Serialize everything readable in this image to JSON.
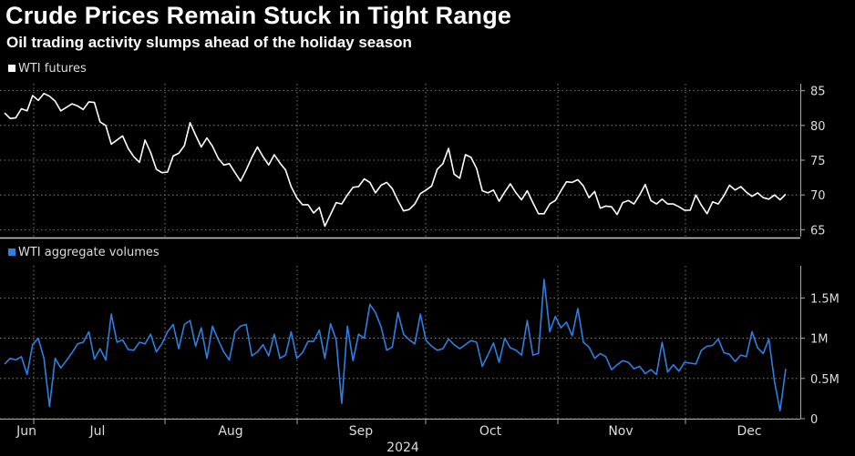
{
  "title": "Crude Prices Remain Stuck in Tight Range",
  "subtitle": "Oil trading activity slumps ahead of the holiday season",
  "colors": {
    "price": "#ffffff",
    "volume": "#2f7fe0",
    "grid": "#9a9a9a",
    "background": "#000000"
  },
  "chart_data": [
    {
      "type": "line",
      "legend": "WTI futures",
      "ylim": [
        64,
        86
      ],
      "yticks": [
        65,
        70,
        75,
        80,
        85
      ],
      "series": [
        {
          "name": "WTI futures",
          "x": [
            0,
            1,
            2,
            3,
            4,
            5,
            6,
            7,
            8,
            9,
            10,
            11,
            12,
            13,
            14,
            15,
            16,
            17,
            18,
            19,
            20,
            21,
            22,
            23,
            24,
            25,
            26,
            27,
            28,
            29,
            30,
            31,
            32,
            33,
            34,
            35,
            36,
            37,
            38,
            39,
            40,
            41,
            42,
            43,
            44,
            45,
            46,
            47,
            48,
            49,
            50,
            51,
            52,
            53,
            54,
            55,
            56,
            57,
            58,
            59,
            60,
            61,
            62,
            63,
            64,
            65,
            66,
            67,
            68,
            69,
            70,
            71,
            72,
            73,
            74,
            75,
            76,
            77,
            78,
            79,
            80,
            81,
            82,
            83,
            84,
            85,
            86,
            87,
            88,
            89,
            90,
            91,
            92,
            93,
            94,
            95,
            96,
            97,
            98,
            99,
            100,
            101,
            102,
            103,
            104,
            105,
            106,
            107,
            108,
            109,
            110,
            111,
            112,
            113,
            114,
            115,
            116,
            117,
            118,
            119,
            120,
            121,
            122,
            123,
            124,
            125,
            126,
            127,
            128,
            129,
            130,
            131,
            132,
            133,
            134,
            135,
            136,
            137,
            138,
            139
          ],
          "values": [
            81.8,
            81.0,
            81.1,
            82.4,
            82.1,
            84.3,
            83.6,
            84.6,
            84.2,
            83.5,
            82.1,
            82.6,
            83.1,
            82.8,
            82.3,
            83.4,
            83.3,
            80.5,
            80.0,
            77.3,
            77.9,
            78.5,
            76.7,
            75.5,
            74.7,
            77.9,
            76.1,
            73.7,
            73.2,
            73.3,
            75.6,
            76.0,
            77.1,
            80.4,
            78.6,
            76.9,
            78.2,
            77.0,
            75.3,
            74.3,
            74.5,
            73.2,
            72.0,
            73.6,
            75.4,
            76.9,
            75.5,
            74.3,
            75.8,
            74.6,
            73.6,
            71.2,
            69.6,
            68.6,
            68.6,
            67.4,
            68.2,
            65.5,
            67.2,
            68.9,
            68.7,
            70.0,
            71.1,
            71.2,
            72.3,
            71.8,
            70.3,
            71.4,
            71.8,
            70.9,
            69.2,
            67.7,
            67.9,
            68.7,
            70.2,
            70.7,
            71.3,
            73.7,
            74.5,
            76.7,
            73.0,
            72.4,
            75.8,
            75.4,
            73.8,
            70.6,
            70.3,
            70.7,
            69.1,
            70.4,
            71.6,
            70.3,
            69.3,
            70.6,
            68.9,
            67.3,
            67.3,
            68.7,
            69.2,
            70.6,
            71.9,
            71.8,
            72.2,
            71.3,
            69.6,
            70.5,
            68.1,
            68.4,
            68.3,
            67.2,
            68.9,
            69.2,
            68.7,
            70.0,
            71.5,
            69.2,
            68.7,
            69.4,
            68.7,
            68.7,
            68.3,
            67.8,
            67.8,
            70.0,
            68.5,
            67.3,
            69.0,
            68.7,
            69.9,
            71.4,
            70.7,
            71.2,
            70.4,
            69.8,
            70.3,
            69.6,
            69.4,
            70.0,
            69.3,
            70.1
          ]
        }
      ]
    },
    {
      "type": "line",
      "legend": "WTI aggregate volumes",
      "ylim": [
        0,
        1.9
      ],
      "yticks": [
        0,
        0.5,
        1,
        1.5
      ],
      "yticklabels": [
        "0",
        "0.5M",
        "1M",
        "1.5M"
      ],
      "series": [
        {
          "name": "WTI aggregate volumes (M)",
          "x": [
            0,
            1,
            2,
            3,
            4,
            5,
            6,
            7,
            8,
            9,
            10,
            11,
            12,
            13,
            14,
            15,
            16,
            17,
            18,
            19,
            20,
            21,
            22,
            23,
            24,
            25,
            26,
            27,
            28,
            29,
            30,
            31,
            32,
            33,
            34,
            35,
            36,
            37,
            38,
            39,
            40,
            41,
            42,
            43,
            44,
            45,
            46,
            47,
            48,
            49,
            50,
            51,
            52,
            53,
            54,
            55,
            56,
            57,
            58,
            59,
            60,
            61,
            62,
            63,
            64,
            65,
            66,
            67,
            68,
            69,
            70,
            71,
            72,
            73,
            74,
            75,
            76,
            77,
            78,
            79,
            80,
            81,
            82,
            83,
            84,
            85,
            86,
            87,
            88,
            89,
            90,
            91,
            92,
            93,
            94,
            95,
            96,
            97,
            98,
            99,
            100,
            101,
            102,
            103,
            104,
            105,
            106,
            107,
            108,
            109,
            110,
            111,
            112,
            113,
            114,
            115,
            116,
            117,
            118,
            119,
            120,
            121,
            122,
            123,
            124,
            125,
            126,
            127,
            128,
            129,
            130,
            131,
            132,
            133,
            134,
            135,
            136,
            137,
            138,
            139
          ],
          "values": [
            0.68,
            0.75,
            0.73,
            0.77,
            0.55,
            0.92,
            1.0,
            0.75,
            0.15,
            0.75,
            0.63,
            0.72,
            0.82,
            0.93,
            0.95,
            1.08,
            0.74,
            0.87,
            0.73,
            1.3,
            0.95,
            0.98,
            0.86,
            0.85,
            0.95,
            0.93,
            1.05,
            0.83,
            0.93,
            1.08,
            1.17,
            0.87,
            1.17,
            1.22,
            0.9,
            1.13,
            0.75,
            1.15,
            0.98,
            0.83,
            0.73,
            1.08,
            1.15,
            1.17,
            0.78,
            0.83,
            0.92,
            0.78,
            1.05,
            0.75,
            0.79,
            1.08,
            0.75,
            0.82,
            0.96,
            0.96,
            1.1,
            0.75,
            1.18,
            0.98,
            0.19,
            1.15,
            0.72,
            1.05,
            1.0,
            1.42,
            1.32,
            1.14,
            0.85,
            0.89,
            1.32,
            1.05,
            0.98,
            0.93,
            1.3,
            0.97,
            0.9,
            0.85,
            0.87,
            0.99,
            0.92,
            0.87,
            0.92,
            0.97,
            0.95,
            0.65,
            0.79,
            0.94,
            0.7,
            1.0,
            0.88,
            0.85,
            0.79,
            1.22,
            0.79,
            0.81,
            1.73,
            1.08,
            1.27,
            1.13,
            1.2,
            1.03,
            1.37,
            0.95,
            0.89,
            0.75,
            0.81,
            0.77,
            0.61,
            0.67,
            0.72,
            0.7,
            0.62,
            0.65,
            0.56,
            0.61,
            0.55,
            0.95,
            0.58,
            0.67,
            0.59,
            0.7,
            0.69,
            0.68,
            0.85,
            0.9,
            0.91,
            0.99,
            0.82,
            0.8,
            0.71,
            0.79,
            0.77,
            1.08,
            0.88,
            0.81,
            0.99,
            0.46,
            0.1,
            0.62
          ]
        }
      ]
    }
  ],
  "x_axis": {
    "months": [
      "Jun",
      "Jul",
      "Aug",
      "Sep",
      "Oct",
      "Nov",
      "Dec"
    ],
    "year": "2024"
  }
}
